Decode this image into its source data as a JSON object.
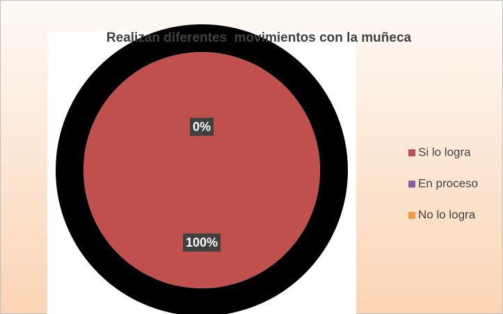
{
  "chart_data": {
    "type": "pie",
    "title": "Realizan diferentes  movimientos con la muñeca",
    "categories": [
      "Si lo logra",
      "En proceso",
      "No lo logra"
    ],
    "values": [
      100,
      0,
      0
    ],
    "value_labels": [
      "100%",
      "0%",
      null
    ],
    "colors": [
      "#c0504d",
      "#8064a2",
      "#f79646"
    ],
    "legend": "right"
  }
}
